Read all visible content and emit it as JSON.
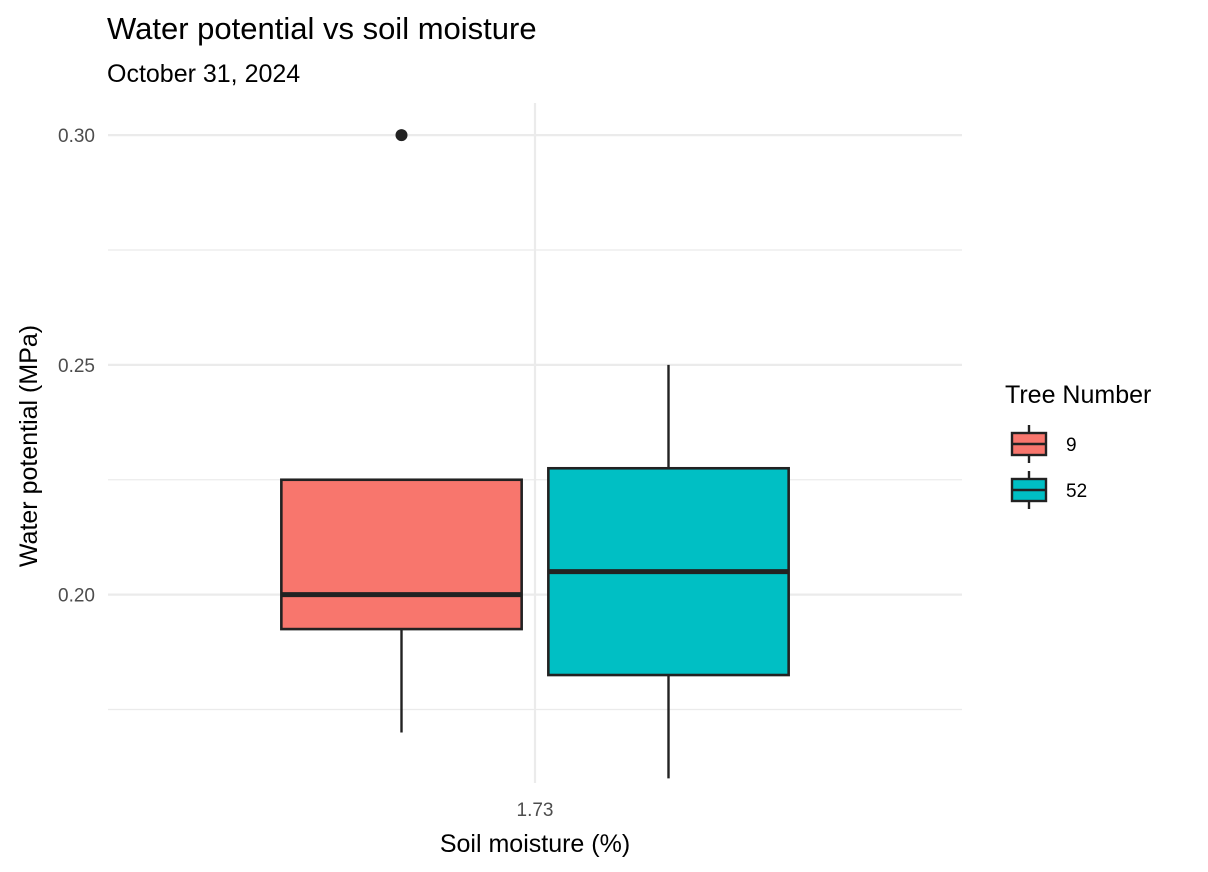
{
  "chart_data": {
    "type": "boxplot",
    "title": "Water potential vs soil moisture",
    "subtitle": "October 31, 2024",
    "xlabel": "Soil moisture (%)",
    "ylabel": "Water potential (MPa)",
    "categories": [
      "1.73"
    ],
    "ylim": [
      0.159,
      0.307
    ],
    "y_ticks": [
      0.2,
      0.25,
      0.3
    ],
    "y_tick_labels": [
      "0.20",
      "0.25",
      "0.30"
    ],
    "grid": true,
    "legend": {
      "title": "Tree Number",
      "position": "right"
    },
    "series": [
      {
        "name": "9",
        "color": "#F8766D",
        "category": "1.73",
        "whisker_low": 0.17,
        "q1": 0.1925,
        "median": 0.2,
        "q3": 0.225,
        "whisker_high": 0.225,
        "outliers": [
          0.3
        ]
      },
      {
        "name": "52",
        "color": "#00BFC4",
        "category": "1.73",
        "whisker_low": 0.16,
        "q1": 0.1825,
        "median": 0.205,
        "q3": 0.2275,
        "whisker_high": 0.25,
        "outliers": []
      }
    ]
  }
}
